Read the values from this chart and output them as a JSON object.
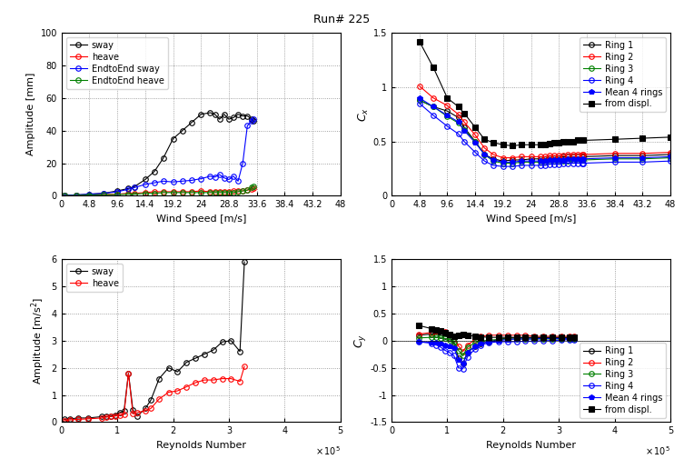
{
  "title": "Run# 225",
  "top_left": {
    "xlabel": "Wind Speed [m/s]",
    "ylabel": "Amplitude [mm]",
    "ylim": [
      0,
      100
    ],
    "xlim": [
      0,
      48
    ],
    "xticks": [
      0,
      4.8,
      9.6,
      14.4,
      19.2,
      24,
      28.8,
      33.6,
      38.4,
      43.2,
      48
    ],
    "yticks": [
      0,
      20,
      40,
      60,
      80,
      100
    ],
    "sway_ws": [
      0.5,
      2.5,
      4.8,
      7.2,
      9.6,
      11.5,
      12.5,
      14.4,
      16.0,
      17.5,
      19.2,
      20.8,
      22.4,
      24.0,
      25.6,
      26.4,
      27.2,
      28.0,
      28.8,
      29.6,
      30.4,
      31.2,
      32.0,
      32.8,
      33.0
    ],
    "sway_amp": [
      0.5,
      0.5,
      1.0,
      1.5,
      3.0,
      4.5,
      5.5,
      10.0,
      15.0,
      23.0,
      35.0,
      40.0,
      45.0,
      50.0,
      51.0,
      50.0,
      47.0,
      50.0,
      47.0,
      48.0,
      50.0,
      49.0,
      49.0,
      47.0,
      46.0
    ],
    "heave_ws": [
      0.5,
      2.5,
      4.8,
      7.2,
      9.6,
      11.5,
      12.5,
      14.4,
      16.0,
      17.5,
      19.2,
      20.8,
      22.4,
      24.0,
      25.6,
      26.4,
      27.2,
      28.0,
      28.8,
      29.6,
      30.4,
      31.2,
      32.0,
      32.8,
      33.0
    ],
    "heave_amp": [
      0.3,
      0.3,
      0.5,
      0.8,
      1.0,
      1.5,
      1.5,
      2.0,
      2.5,
      2.5,
      2.5,
      2.5,
      2.5,
      3.0,
      2.5,
      2.5,
      2.5,
      2.5,
      2.5,
      3.0,
      3.0,
      3.0,
      3.5,
      4.0,
      4.5
    ],
    "e2e_sway_ws": [
      0.5,
      2.5,
      4.8,
      7.2,
      9.6,
      11.5,
      12.5,
      14.4,
      16.0,
      17.5,
      19.2,
      20.8,
      22.4,
      24.0,
      25.6,
      26.4,
      27.2,
      28.0,
      28.8,
      29.6,
      30.4,
      31.2,
      32.0,
      32.8,
      33.0
    ],
    "e2e_sway_amp": [
      0.5,
      0.5,
      1.0,
      1.5,
      2.5,
      4.0,
      5.0,
      7.0,
      8.0,
      9.0,
      8.5,
      9.0,
      9.5,
      10.5,
      12.0,
      11.5,
      13.0,
      11.0,
      10.0,
      12.0,
      9.0,
      20.0,
      43.0,
      46.0,
      47.0
    ],
    "e2e_heave_ws": [
      0.5,
      2.5,
      4.8,
      7.2,
      9.6,
      11.5,
      12.5,
      14.4,
      16.0,
      17.5,
      19.2,
      20.8,
      22.4,
      24.0,
      25.6,
      26.4,
      27.2,
      28.0,
      28.8,
      29.6,
      30.4,
      31.2,
      32.0,
      32.8,
      33.0
    ],
    "e2e_heave_amp": [
      0.2,
      0.2,
      0.5,
      0.7,
      0.8,
      1.0,
      1.0,
      1.5,
      1.5,
      2.0,
      2.0,
      2.0,
      2.0,
      2.0,
      2.0,
      2.0,
      2.0,
      2.0,
      2.0,
      2.0,
      2.5,
      3.0,
      3.5,
      5.0,
      6.0
    ]
  },
  "top_right": {
    "xlabel": "Wind Speed [m/s]",
    "ylabel": "C_x",
    "ylim": [
      0,
      1.5
    ],
    "xlim": [
      0,
      48
    ],
    "xticks": [
      0,
      4.8,
      9.6,
      14.4,
      19.2,
      24,
      28.8,
      33.6,
      38.4,
      43.2,
      48
    ],
    "yticks": [
      0,
      0.5,
      1.0,
      1.5
    ],
    "ws": [
      4.8,
      7.2,
      9.6,
      11.5,
      12.5,
      14.4,
      16.0,
      17.5,
      19.2,
      20.8,
      22.4,
      24.0,
      25.6,
      26.4,
      27.2,
      28.0,
      28.8,
      29.6,
      30.4,
      31.2,
      32.0,
      32.8,
      33.0,
      38.4,
      43.2,
      48.0
    ],
    "ring1": [
      0.88,
      0.82,
      0.78,
      0.72,
      0.63,
      0.5,
      0.38,
      0.34,
      0.32,
      0.33,
      0.33,
      0.34,
      0.34,
      0.34,
      0.35,
      0.35,
      0.35,
      0.36,
      0.36,
      0.36,
      0.36,
      0.36,
      0.36,
      0.37,
      0.37,
      0.38
    ],
    "ring2": [
      1.01,
      0.9,
      0.83,
      0.75,
      0.68,
      0.56,
      0.44,
      0.38,
      0.35,
      0.35,
      0.36,
      0.36,
      0.36,
      0.36,
      0.37,
      0.37,
      0.37,
      0.37,
      0.38,
      0.38,
      0.38,
      0.38,
      0.38,
      0.39,
      0.39,
      0.4
    ],
    "ring3": [
      0.88,
      0.82,
      0.73,
      0.67,
      0.61,
      0.5,
      0.38,
      0.32,
      0.3,
      0.3,
      0.31,
      0.31,
      0.31,
      0.31,
      0.32,
      0.32,
      0.32,
      0.32,
      0.32,
      0.33,
      0.33,
      0.33,
      0.33,
      0.34,
      0.34,
      0.35
    ],
    "ring4": [
      0.85,
      0.74,
      0.64,
      0.57,
      0.5,
      0.4,
      0.32,
      0.28,
      0.27,
      0.27,
      0.28,
      0.28,
      0.28,
      0.28,
      0.29,
      0.29,
      0.29,
      0.3,
      0.3,
      0.3,
      0.3,
      0.3,
      0.3,
      0.31,
      0.31,
      0.32
    ],
    "mean4": [
      0.9,
      0.82,
      0.74,
      0.68,
      0.6,
      0.49,
      0.38,
      0.33,
      0.31,
      0.31,
      0.32,
      0.32,
      0.32,
      0.32,
      0.33,
      0.33,
      0.33,
      0.33,
      0.34,
      0.34,
      0.34,
      0.34,
      0.34,
      0.35,
      0.35,
      0.36
    ],
    "from_displ_ws": [
      4.8,
      7.2,
      9.6,
      11.5,
      12.5,
      14.4,
      16.0,
      17.5,
      19.2,
      20.8,
      22.4,
      24.0,
      25.6,
      26.4,
      27.2,
      28.0,
      28.8,
      29.6,
      30.4,
      31.2,
      32.0,
      32.8,
      33.0,
      38.4,
      43.2,
      48.0
    ],
    "from_displ": [
      1.42,
      1.18,
      0.9,
      0.82,
      0.76,
      0.63,
      0.52,
      0.49,
      0.47,
      0.46,
      0.47,
      0.47,
      0.47,
      0.47,
      0.48,
      0.49,
      0.49,
      0.5,
      0.5,
      0.5,
      0.51,
      0.51,
      0.51,
      0.52,
      0.53,
      0.54
    ]
  },
  "bottom_left": {
    "xlabel": "Reynolds Number",
    "ylabel": "Amplitude [m/s^2]",
    "ylim": [
      0,
      6
    ],
    "xlim": [
      0,
      500000.0
    ],
    "yticks": [
      0,
      1,
      2,
      3,
      4,
      5,
      6
    ],
    "xticks": [
      0,
      100000.0,
      200000.0,
      300000.0,
      400000.0,
      500000.0
    ],
    "re_sway": [
      5000,
      15000,
      30000,
      48000,
      72000,
      80000,
      88000,
      96000,
      104000,
      112000,
      120000,
      128000,
      136000,
      150000,
      160000,
      175000,
      192000,
      208000,
      224000,
      240000,
      256000,
      272000,
      288000,
      304000,
      320000,
      328000
    ],
    "amp_sway": [
      0.1,
      0.12,
      0.15,
      0.15,
      0.2,
      0.2,
      0.22,
      0.25,
      0.35,
      0.4,
      1.8,
      0.45,
      0.22,
      0.5,
      0.8,
      1.6,
      2.0,
      1.85,
      2.2,
      2.35,
      2.5,
      2.65,
      2.95,
      3.0,
      2.6,
      5.9
    ],
    "re_heave": [
      5000,
      15000,
      30000,
      48000,
      72000,
      80000,
      88000,
      96000,
      104000,
      112000,
      120000,
      128000,
      136000,
      150000,
      160000,
      175000,
      192000,
      208000,
      224000,
      240000,
      256000,
      272000,
      288000,
      304000,
      320000,
      328000
    ],
    "amp_heave": [
      0.05,
      0.08,
      0.1,
      0.12,
      0.15,
      0.18,
      0.2,
      0.22,
      0.25,
      0.28,
      1.8,
      0.3,
      0.35,
      0.42,
      0.5,
      0.85,
      1.1,
      1.15,
      1.3,
      1.45,
      1.55,
      1.55,
      1.6,
      1.6,
      1.5,
      2.05
    ],
    "sway_label": "sway",
    "heave_label": "heave"
  },
  "bottom_right": {
    "xlabel": "Reynolds Number",
    "ylabel": "C_y",
    "ylim": [
      -1.5,
      1.5
    ],
    "xlim": [
      0,
      500000.0
    ],
    "yticks": [
      -1.5,
      -1.0,
      -0.5,
      0,
      0.5,
      1.0,
      1.5
    ],
    "xticks": [
      0,
      100000.0,
      200000.0,
      300000.0,
      400000.0,
      500000.0
    ],
    "re": [
      48000,
      72000,
      80000,
      88000,
      96000,
      104000,
      112000,
      120000,
      128000,
      136000,
      150000,
      160000,
      175000,
      192000,
      208000,
      224000,
      240000,
      256000,
      272000,
      288000,
      304000,
      320000,
      328000
    ],
    "ring1": [
      0.1,
      0.12,
      0.12,
      0.1,
      0.08,
      0.05,
      -0.05,
      -0.32,
      -0.42,
      -0.22,
      -0.1,
      -0.05,
      -0.02,
      0.02,
      0.05,
      0.05,
      0.05,
      0.05,
      0.05,
      0.05,
      0.05,
      0.05,
      0.05
    ],
    "ring2": [
      0.12,
      0.15,
      0.18,
      0.18,
      0.16,
      0.12,
      0.08,
      -0.1,
      -0.2,
      -0.08,
      0.02,
      0.08,
      0.1,
      0.1,
      0.1,
      0.1,
      0.1,
      0.08,
      0.08,
      0.08,
      0.08,
      0.08,
      0.08
    ],
    "ring3": [
      0.05,
      0.06,
      0.06,
      0.05,
      0.04,
      0.02,
      -0.02,
      -0.18,
      -0.28,
      -0.12,
      -0.04,
      -0.01,
      0.01,
      0.02,
      0.03,
      0.03,
      0.03,
      0.03,
      0.03,
      0.03,
      0.03,
      0.03,
      0.03
    ],
    "ring4": [
      -0.02,
      -0.05,
      -0.08,
      -0.12,
      -0.18,
      -0.22,
      -0.28,
      -0.5,
      -0.52,
      -0.3,
      -0.15,
      -0.08,
      -0.04,
      -0.02,
      -0.02,
      -0.02,
      -0.01,
      -0.01,
      0.0,
      0.0,
      0.01,
      0.02,
      0.02
    ],
    "mean4": [
      -0.02,
      -0.03,
      -0.04,
      -0.06,
      -0.08,
      -0.1,
      -0.14,
      -0.35,
      -0.42,
      -0.22,
      -0.1,
      -0.05,
      -0.02,
      0.0,
      0.02,
      0.03,
      0.03,
      0.03,
      0.04,
      0.04,
      0.04,
      0.04,
      0.04
    ],
    "from_displ_re": [
      48000,
      72000,
      80000,
      88000,
      96000,
      104000,
      112000,
      120000,
      128000,
      136000,
      150000,
      160000,
      175000,
      192000,
      208000,
      224000,
      240000,
      256000,
      272000,
      288000,
      304000,
      320000,
      328000
    ],
    "from_displ": [
      0.28,
      0.22,
      0.2,
      0.18,
      0.15,
      0.12,
      0.08,
      0.1,
      0.12,
      0.1,
      0.08,
      0.07,
      0.06,
      0.06,
      0.06,
      0.06,
      0.06,
      0.06,
      0.06,
      0.06,
      0.06,
      0.06,
      0.06
    ]
  }
}
